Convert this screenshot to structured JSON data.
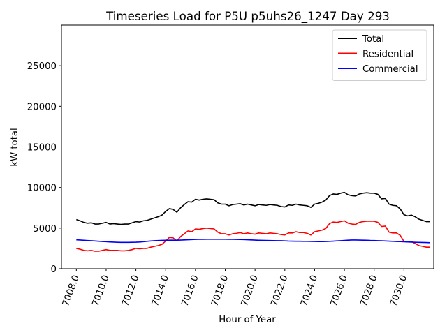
{
  "chart_data": {
    "type": "line",
    "title": "Timeseries Load for P5U p5uhs26_1247  Day 293",
    "xlabel": "Hour of Year",
    "ylabel": "kW total",
    "xlim": [
      7007.0,
      7032.0
    ],
    "ylim": [
      0,
      30000
    ],
    "xticks": [
      7008.0,
      7010.0,
      7012.0,
      7014.0,
      7016.0,
      7018.0,
      7020.0,
      7022.0,
      7024.0,
      7026.0,
      7028.0,
      7030.0
    ],
    "xtick_labels": [
      "7008.0",
      "7010.0",
      "7012.0",
      "7014.0",
      "7016.0",
      "7018.0",
      "7020.0",
      "7022.0",
      "7024.0",
      "7026.0",
      "7028.0",
      "7030.0"
    ],
    "yticks": [
      0,
      5000,
      10000,
      15000,
      20000,
      25000
    ],
    "ytick_labels": [
      "0",
      "5000",
      "10000",
      "15000",
      "20000",
      "25000"
    ],
    "legend_position": "top-right",
    "x": {
      "start": 7008.0,
      "step": 0.25
    },
    "series": [
      {
        "name": "Total",
        "color": "#000000",
        "values": [
          6050,
          5900,
          5700,
          5600,
          5650,
          5500,
          5500,
          5600,
          5700,
          5500,
          5550,
          5500,
          5450,
          5500,
          5500,
          5650,
          5800,
          5750,
          5900,
          5950,
          6100,
          6250,
          6400,
          6600,
          7050,
          7400,
          7300,
          6950,
          7500,
          7900,
          8250,
          8200,
          8550,
          8450,
          8550,
          8600,
          8550,
          8500,
          8100,
          7950,
          7950,
          7750,
          7900,
          7950,
          8000,
          7850,
          7950,
          7850,
          7750,
          7900,
          7850,
          7800,
          7900,
          7850,
          7800,
          7650,
          7600,
          7850,
          7800,
          7950,
          7850,
          7800,
          7750,
          7550,
          7950,
          8050,
          8200,
          8450,
          9000,
          9200,
          9150,
          9300,
          9400,
          9100,
          9000,
          8950,
          9200,
          9300,
          9350,
          9300,
          9300,
          9150,
          8600,
          8650,
          7950,
          7800,
          7750,
          7350,
          6650,
          6500,
          6600,
          6400,
          6100,
          5950,
          5800,
          5800
        ]
      },
      {
        "name": "Residential",
        "color": "#ff0000",
        "values": [
          2500,
          2400,
          2250,
          2200,
          2250,
          2150,
          2150,
          2250,
          2350,
          2250,
          2250,
          2250,
          2200,
          2200,
          2250,
          2350,
          2500,
          2450,
          2500,
          2500,
          2650,
          2750,
          2850,
          3000,
          3400,
          3850,
          3800,
          3400,
          3950,
          4300,
          4650,
          4550,
          4900,
          4850,
          4950,
          5000,
          4950,
          4900,
          4500,
          4300,
          4300,
          4150,
          4300,
          4350,
          4450,
          4300,
          4400,
          4300,
          4250,
          4400,
          4350,
          4300,
          4400,
          4350,
          4300,
          4200,
          4150,
          4400,
          4400,
          4550,
          4450,
          4450,
          4350,
          4150,
          4550,
          4650,
          4750,
          4950,
          5550,
          5750,
          5700,
          5800,
          5900,
          5600,
          5500,
          5450,
          5700,
          5800,
          5850,
          5850,
          5850,
          5700,
          5200,
          5250,
          4500,
          4400,
          4400,
          4100,
          3350,
          3300,
          3350,
          3100,
          2850,
          2750,
          2650,
          2650
        ]
      },
      {
        "name": "Commercial",
        "color": "#0000ff",
        "values": [
          3550,
          3530,
          3500,
          3470,
          3440,
          3410,
          3380,
          3350,
          3320,
          3290,
          3270,
          3250,
          3240,
          3240,
          3240,
          3250,
          3260,
          3280,
          3320,
          3370,
          3410,
          3440,
          3470,
          3490,
          3500,
          3510,
          3510,
          3510,
          3520,
          3540,
          3560,
          3580,
          3600,
          3610,
          3620,
          3630,
          3630,
          3630,
          3630,
          3630,
          3630,
          3620,
          3610,
          3600,
          3590,
          3580,
          3560,
          3540,
          3520,
          3500,
          3490,
          3480,
          3470,
          3460,
          3450,
          3440,
          3420,
          3400,
          3390,
          3380,
          3380,
          3370,
          3370,
          3360,
          3350,
          3340,
          3340,
          3350,
          3370,
          3390,
          3420,
          3450,
          3480,
          3510,
          3530,
          3530,
          3520,
          3510,
          3500,
          3480,
          3470,
          3450,
          3430,
          3410,
          3390,
          3370,
          3350,
          3330,
          3310,
          3290,
          3270,
          3250,
          3240,
          3230,
          3220,
          3200
        ]
      }
    ]
  }
}
